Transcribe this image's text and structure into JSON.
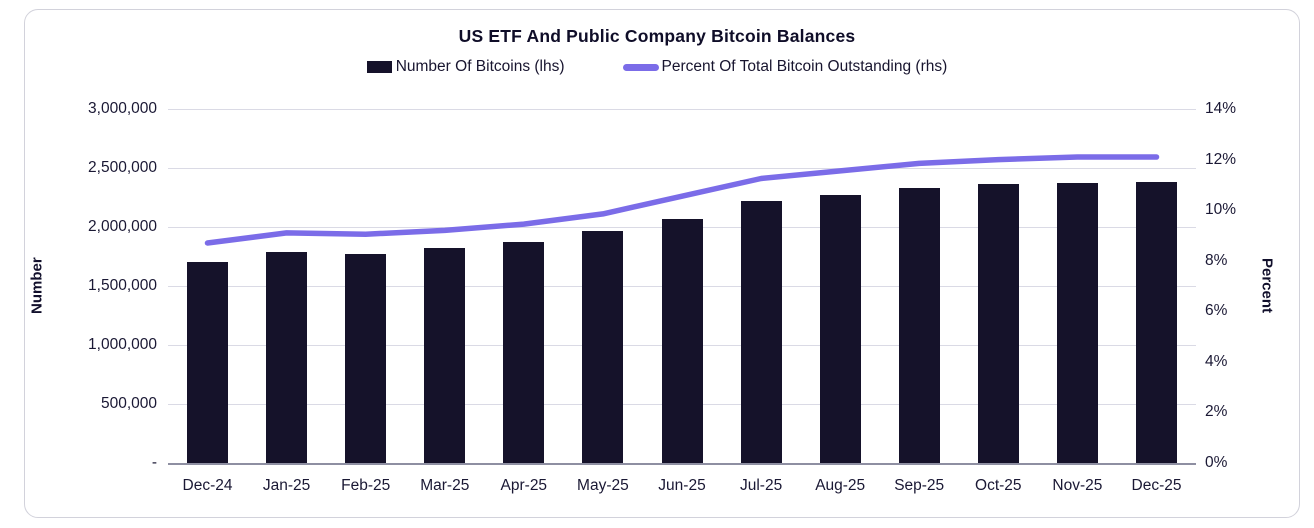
{
  "title": "US ETF And Public Company Bitcoin Balances",
  "legend": {
    "bars_label": "Number Of Bitcoins (lhs)",
    "line_label": "Percent Of Total Bitcoin Outstanding (rhs)"
  },
  "axes": {
    "left_title": "Number",
    "right_title": "Percent",
    "left_ticks": [
      "3,000,000",
      "2,500,000",
      "2,000,000",
      "1,500,000",
      "1,000,000",
      "500,000",
      "-"
    ],
    "right_ticks": [
      "14%",
      "12%",
      "10%",
      "8%",
      "6%",
      "4%",
      "2%",
      "0%"
    ]
  },
  "colors": {
    "bar": "#15122a",
    "line": "#7b6ce8",
    "grid": "#dadae5",
    "axis_line": "#8e8fa2",
    "text": "#1a1834",
    "card_border": "#d2d2db"
  },
  "chart_data": {
    "type": "bar",
    "subtype": "bar+line dual-axis combo",
    "title": "US ETF And Public Company Bitcoin Balances",
    "categories": [
      "Dec-24",
      "Jan-25",
      "Feb-25",
      "Mar-25",
      "Apr-25",
      "May-25",
      "Jun-25",
      "Jul-25",
      "Aug-25",
      "Sep-25",
      "Oct-25",
      "Nov-25",
      "Dec-25"
    ],
    "series": [
      {
        "name": "Number Of Bitcoins (lhs)",
        "type": "bar",
        "axis": "left",
        "values": [
          1705000,
          1785000,
          1770000,
          1820000,
          1870000,
          1965000,
          2070000,
          2220000,
          2270000,
          2330000,
          2365000,
          2375000,
          2385000
        ]
      },
      {
        "name": "Percent Of Total Bitcoin Outstanding (rhs)",
        "type": "line",
        "axis": "right",
        "values": [
          8.7,
          9.1,
          9.05,
          9.2,
          9.45,
          9.85,
          10.55,
          11.25,
          11.55,
          11.85,
          12.0,
          12.1,
          12.1
        ]
      }
    ],
    "ylabel_left": "Number",
    "ylabel_right": "Percent",
    "ylim_left": [
      0,
      3000000
    ],
    "ylim_right": [
      0,
      14
    ],
    "left_tick_step": 500000,
    "right_tick_step": 2,
    "grid": "horizontal gridlines on, aligned to left axis",
    "legend_position": "top center",
    "zero_label_left": "-"
  }
}
